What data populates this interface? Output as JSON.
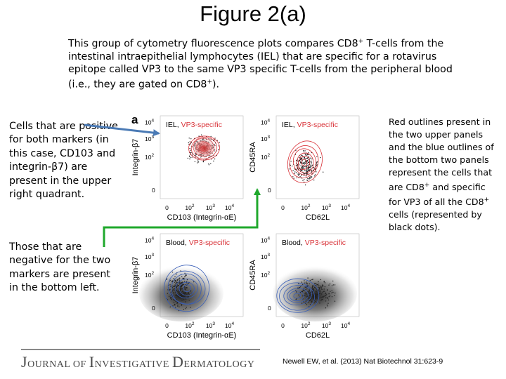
{
  "slide": {
    "title": "Figure 2(a)",
    "intro": {
      "p1": "This group of cytometry fluorescence plots compares CD8",
      "p1_sup": "+",
      "p2": " T-cells from the intestinal intraepithelial lymphocytes (IEL) that are specific for a rotavirus epitope called VP3 to the same VP3 specific T-cells from the peripheral blood (i.e., they are gated on CD8",
      "p2_sup": "+",
      "p3": ")."
    },
    "left_note_positive": "Cells that are positive for both markers (in this case, CD103 and integrin-β7) are present in the upper right quadrant.",
    "left_note_negative": "Those that are negative for the two markers are present in the bottom left.",
    "right_note": {
      "p1": "Red outlines present in the two upper panels and the blue outlines of the bottom two panels represent the cells that are CD8",
      "p1_sup": "+",
      "p2": " and specific for VP3 of all the CD8",
      "p2_sup": "+",
      "p3": " cells (represented by black dots)."
    }
  },
  "figure": {
    "panel_letter": "a",
    "panels": [
      {
        "title_a": "IEL, ",
        "title_b": "VP3-specific",
        "ylabel": "Integrin-β7",
        "xlabel": "CD103 (Integrin-αE)",
        "contour_color": "#d9343a"
      },
      {
        "title_a": "IEL, ",
        "title_b": "VP3-specific",
        "ylabel": "CD45RA",
        "xlabel": "CD62L",
        "contour_color": "#d9343a"
      },
      {
        "title_a": "Blood, ",
        "title_b": "VP3-specific",
        "ylabel": "Integrin-β7",
        "xlabel": "CD103 (Integrin-αE)",
        "contour_color": "#3a5fb8"
      },
      {
        "title_a": "Blood, ",
        "title_b": "VP3-specific",
        "ylabel": "CD45RA",
        "xlabel": "CD62L",
        "contour_color": "#3a5fb8"
      }
    ],
    "ticks": {
      "t0": "0",
      "t1": "10",
      "t2": "10",
      "t3": "10",
      "t4": "10",
      "e2": "2",
      "e3": "3",
      "e4": "4"
    },
    "title_color": "#d9343a",
    "arrow_blue": "#4a7ab5",
    "arrow_green": "#1fa82c"
  },
  "footer": {
    "journal_j": "J",
    "journal_ournal_of": "OURNAL OF ",
    "journal_i": "I",
    "journal_nvestigative": "NVESTIGATIVE ",
    "journal_d": "D",
    "journal_ermatology": "ERMATOLOGY",
    "citation": "Newell EW, et al. (2013) Nat Biotechnol 31:623-9"
  }
}
